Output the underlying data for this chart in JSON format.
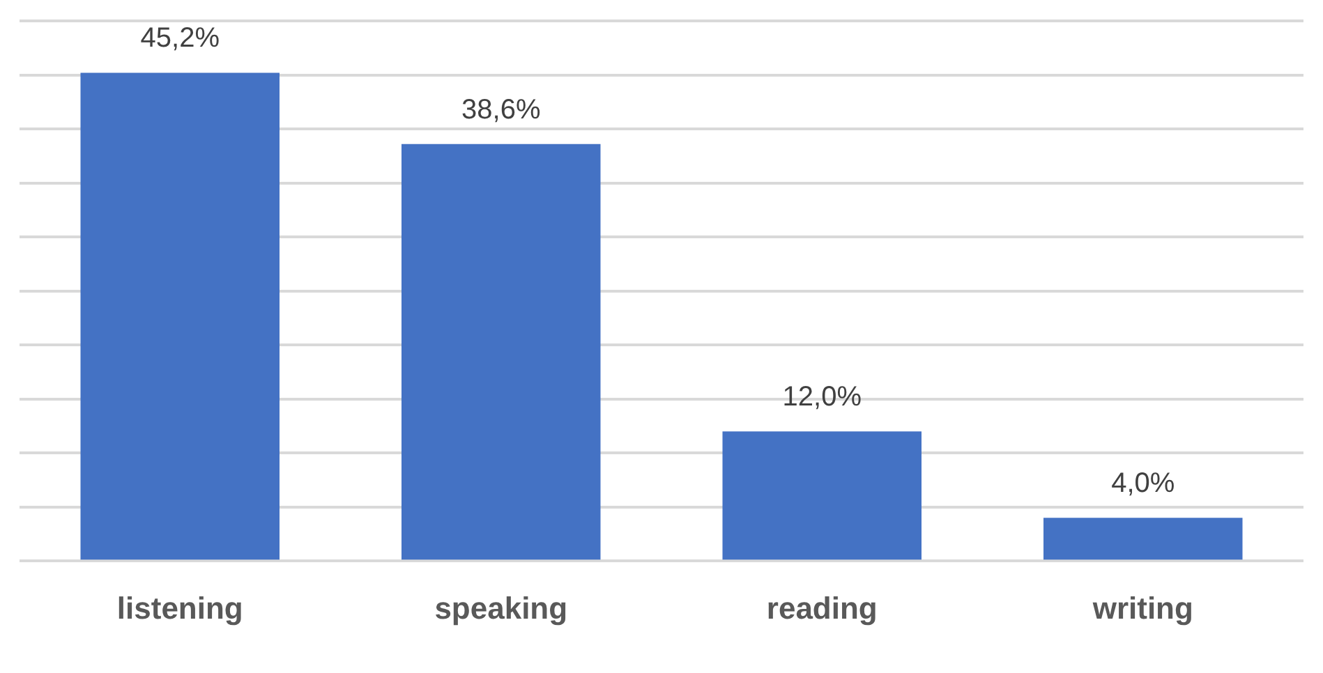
{
  "chart_data": {
    "type": "bar",
    "categories": [
      "listening",
      "speaking",
      "reading",
      "writing"
    ],
    "values": [
      45.2,
      38.6,
      12.0,
      4.0
    ],
    "value_labels": [
      "45,2%",
      "38,6%",
      "12,0%",
      "4,0%"
    ],
    "color": "#4472c4",
    "ylim": [
      0,
      50
    ],
    "yticks": [
      {
        "value": 0,
        "label": null
      },
      {
        "value": 5,
        "label": null
      },
      {
        "value": 10,
        "label": null
      },
      {
        "value": 15,
        "label": null
      },
      {
        "value": 20,
        "label": null
      },
      {
        "value": 25,
        "label": null
      },
      {
        "value": 30,
        "label": null
      },
      {
        "value": 35,
        "label": null
      },
      {
        "value": 40,
        "label": null
      },
      {
        "value": 45,
        "label": null
      },
      {
        "value": 50,
        "label": null
      }
    ],
    "grid": "y",
    "tick_labels": "x",
    "legend": false
  }
}
